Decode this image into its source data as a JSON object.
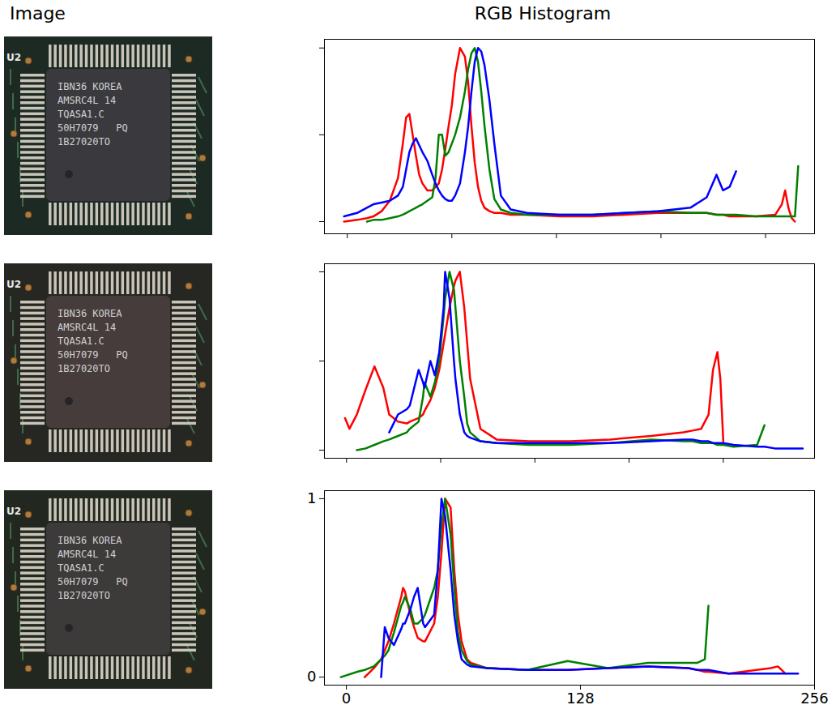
{
  "column_titles": [
    "Image",
    "RGB Histogram"
  ],
  "image": {
    "board_label": "U2",
    "chip_marking": [
      "IBN36 KOREA",
      "AMSRC4L 14",
      "TQASA1.C",
      "50H7079   PQ",
      "1B27020TO"
    ]
  },
  "chart_data": [
    {
      "type": "line",
      "tick_labels": false,
      "xlim": [
        -14,
        286
      ],
      "xticks": [
        0,
        64,
        128,
        192,
        256
      ],
      "ylim": [
        -0.07,
        1.05
      ],
      "yticks": [
        0,
        0.5,
        1
      ],
      "x": [
        -2,
        6,
        12,
        16,
        21,
        26,
        31,
        34,
        36,
        38,
        40,
        42,
        44,
        46,
        49,
        52,
        54,
        56,
        58,
        60,
        62,
        64,
        66,
        69,
        72,
        74,
        76,
        78,
        80,
        82,
        84,
        87,
        90,
        94,
        100,
        110,
        130,
        150,
        170,
        190,
        210,
        220,
        226,
        230,
        234,
        238,
        250,
        262,
        266,
        268,
        270,
        272,
        274,
        276
      ],
      "series": [
        {
          "color": "red",
          "values": [
            0,
            0.01,
            0.02,
            0.03,
            0.06,
            0.12,
            0.25,
            0.45,
            0.6,
            0.62,
            0.5,
            0.38,
            0.27,
            0.22,
            0.18,
            0.18,
            0.2,
            0.22,
            0.3,
            0.42,
            0.55,
            0.67,
            0.85,
            1,
            0.95,
            0.8,
            0.55,
            0.34,
            0.2,
            0.12,
            0.08,
            0.06,
            0.05,
            0.05,
            0.04,
            0.04,
            0.03,
            0.03,
            0.04,
            0.05,
            0.05,
            0.05,
            0.04,
            0.04,
            0.03,
            0.03,
            0.03,
            0.04,
            0.1,
            0.18,
            0.08,
            0.02,
            0,
            null
          ]
        },
        {
          "color": "green",
          "values": [
            null,
            null,
            0,
            0.01,
            0.01,
            0.02,
            0.03,
            0.04,
            0.05,
            0.06,
            0.07,
            0.08,
            0.09,
            0.1,
            0.12,
            0.14,
            0.25,
            0.5,
            0.5,
            0.38,
            0.4,
            0.45,
            0.5,
            0.6,
            0.75,
            0.88,
            0.97,
            1,
            0.92,
            0.75,
            0.55,
            0.3,
            0.13,
            0.07,
            0.05,
            0.04,
            0.04,
            0.04,
            0.05,
            0.06,
            0.05,
            0.05,
            0.04,
            0.04,
            0.04,
            0.04,
            0.03,
            0.03,
            0.03,
            0.03,
            0.03,
            0.03,
            0.03,
            0.32
          ]
        },
        {
          "color": "blue",
          "values": [
            0.03,
            0.05,
            0.08,
            0.1,
            0.11,
            0.12,
            0.15,
            0.2,
            0.3,
            0.4,
            0.45,
            0.48,
            0.44,
            0.4,
            0.35,
            0.27,
            0.22,
            0.18,
            0.15,
            0.13,
            0.12,
            0.12,
            0.15,
            0.22,
            0.4,
            0.55,
            0.75,
            0.92,
            1,
            0.98,
            0.9,
            0.7,
            0.45,
            0.15,
            0.07,
            0.05,
            0.04,
            0.04,
            0.05,
            0.06,
            0.08,
            0.14,
            0.27,
            0.18,
            0.2,
            0.29,
            null,
            null,
            null,
            null,
            null,
            null,
            null,
            null
          ]
        }
      ]
    },
    {
      "type": "line",
      "tick_labels": false,
      "xlim": [
        -15,
        318
      ],
      "xticks": [
        0,
        64,
        128,
        192,
        256
      ],
      "ylim": [
        -0.045,
        1.045
      ],
      "yticks": [
        0,
        0.5,
        1
      ],
      "x": [
        -1,
        2,
        7,
        13,
        19,
        25,
        29,
        35,
        41,
        43,
        49,
        52,
        53,
        57,
        60,
        63,
        66,
        67,
        68,
        70,
        73,
        74,
        77,
        80,
        82,
        84,
        91,
        102,
        124,
        152,
        179,
        207,
        229,
        235,
        241,
        246,
        249,
        252,
        254,
        256,
        263,
        279,
        284,
        291,
        310
      ],
      "series": [
        {
          "color": "red",
          "values": [
            0.18,
            0.12,
            0.2,
            0.34,
            0.47,
            0.35,
            0.2,
            0.16,
            0.15,
            0.16,
            0.18,
            0.2,
            0.22,
            0.28,
            0.35,
            0.45,
            0.6,
            0.65,
            0.7,
            0.8,
            0.92,
            0.95,
            1,
            0.8,
            0.6,
            0.4,
            0.12,
            0.06,
            0.05,
            0.05,
            0.06,
            0.08,
            0.1,
            0.11,
            0.12,
            0.2,
            0.45,
            0.55,
            0.4,
            0.05,
            null,
            null,
            null,
            null,
            null
          ]
        },
        {
          "color": "green",
          "values": [
            null,
            null,
            0,
            0.01,
            0.03,
            0.05,
            0.06,
            0.08,
            0.1,
            0.12,
            0.16,
            0.3,
            0.38,
            0.3,
            0.38,
            0.5,
            0.75,
            0.85,
            0.9,
            1,
            0.9,
            0.8,
            0.5,
            0.3,
            0.15,
            0.1,
            0.05,
            0.04,
            0.03,
            0.03,
            0.04,
            0.06,
            0.05,
            0.05,
            0.04,
            0.04,
            0.04,
            0.03,
            0.03,
            0.03,
            0.02,
            0.03,
            0.14,
            null,
            null
          ]
        },
        {
          "color": "blue",
          "values": [
            null,
            null,
            null,
            null,
            null,
            null,
            0.1,
            0.2,
            0.23,
            0.25,
            0.45,
            0.38,
            0.35,
            0.5,
            0.42,
            0.55,
            0.8,
            1,
            0.95,
            0.85,
            0.5,
            0.4,
            0.2,
            0.1,
            0.08,
            0.07,
            0.05,
            0.04,
            0.04,
            0.04,
            0.04,
            0.05,
            0.06,
            0.06,
            0.05,
            0.05,
            0.04,
            0.04,
            0.04,
            0.04,
            0.03,
            0.02,
            0.02,
            0.01,
            0.01
          ]
        }
      ]
    },
    {
      "type": "line",
      "xlim": [
        -12,
        256
      ],
      "xticks": [
        0,
        128,
        256
      ],
      "ylim": [
        -0.045,
        1.045
      ],
      "yticks": [
        0,
        1
      ],
      "x": [
        -3,
        6,
        10,
        15,
        19,
        21,
        23,
        26,
        30,
        31,
        32,
        35,
        37,
        39,
        42,
        43,
        48,
        50,
        52,
        54,
        57,
        59,
        61,
        63,
        66,
        68,
        77,
        99,
        121,
        143,
        165,
        187,
        192,
        196,
        198,
        209,
        232,
        236,
        240,
        247
      ],
      "series": [
        {
          "color": "red",
          "values": [
            null,
            null,
            0,
            0.05,
            0.1,
            0.15,
            0.2,
            0.3,
            0.45,
            0.5,
            0.48,
            0.35,
            0.28,
            0.22,
            0.2,
            0.2,
            0.3,
            0.45,
            0.7,
            1,
            0.95,
            0.6,
            0.35,
            0.2,
            0.1,
            0.08,
            0.05,
            0.04,
            0.04,
            0.05,
            0.06,
            0.05,
            0.04,
            0.03,
            0.03,
            0.02,
            0.05,
            0.06,
            0.02,
            null
          ]
        },
        {
          "color": "green",
          "values": [
            0,
            0.03,
            0.04,
            0.06,
            0.1,
            0.12,
            0.15,
            0.25,
            0.4,
            0.42,
            0.45,
            0.38,
            0.3,
            0.3,
            0.33,
            0.35,
            0.5,
            0.6,
            0.85,
            1,
            0.8,
            0.5,
            0.25,
            0.15,
            0.09,
            0.07,
            0.05,
            0.04,
            0.09,
            0.05,
            0.08,
            0.08,
            0.08,
            0.1,
            0.4,
            null,
            null,
            null,
            null,
            null
          ]
        },
        {
          "color": "blue",
          "values": [
            null,
            null,
            null,
            null,
            0,
            0.28,
            0.22,
            0.18,
            0.27,
            0.3,
            0.3,
            0.38,
            0.45,
            0.5,
            0.3,
            0.28,
            0.35,
            0.6,
            1,
            0.9,
            0.6,
            0.35,
            0.2,
            0.1,
            0.07,
            0.06,
            0.05,
            0.04,
            0.04,
            0.05,
            0.06,
            0.05,
            0.04,
            0.04,
            0.04,
            0.02,
            0.02,
            0.02,
            0.02,
            0.02
          ]
        }
      ]
    }
  ]
}
